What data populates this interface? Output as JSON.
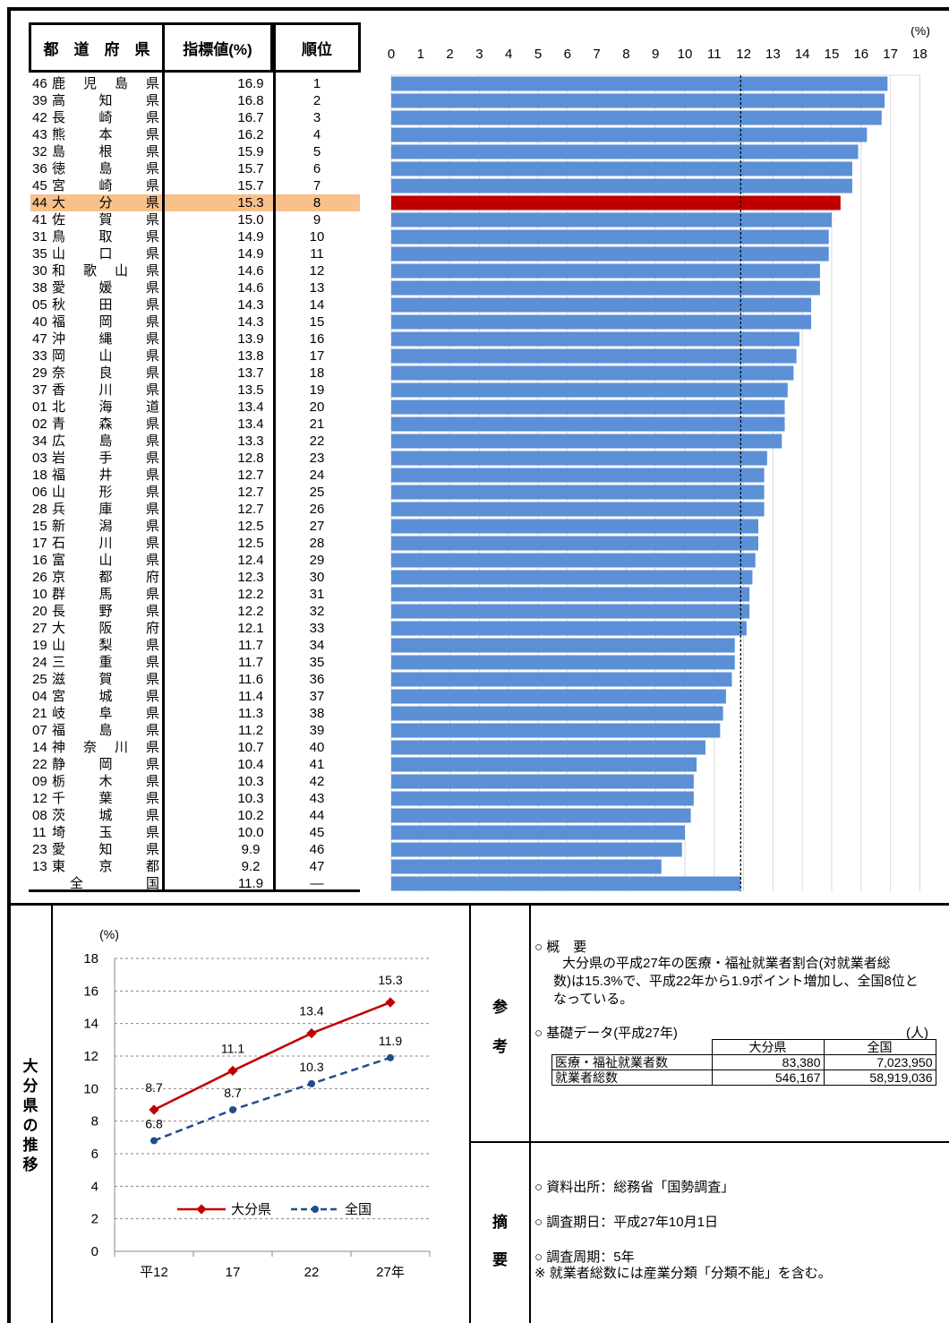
{
  "table_headers": {
    "prefecture": "都　道　府　県",
    "value": "指標値(%)",
    "rank": "順位"
  },
  "chart_data": [
    {
      "type": "bar",
      "orientation": "horizontal",
      "unit": "(%)",
      "xlim": [
        0,
        18
      ],
      "xticks": [
        "0",
        "1",
        "2",
        "3",
        "4",
        "5",
        "6",
        "7",
        "8",
        "9",
        "10",
        "11",
        "12",
        "13",
        "14",
        "15",
        "16",
        "17",
        "18"
      ],
      "reference_line": 11.9,
      "highlight": "大分県",
      "colors": {
        "bar": "#5b8fd6",
        "highlight": "#c00000",
        "highlight_row": "#f8c08a"
      },
      "rows": [
        {
          "code": "46",
          "name": "鹿児島県",
          "value": 16.9,
          "rank": "1"
        },
        {
          "code": "39",
          "name": "高知県",
          "value": 16.8,
          "rank": "2"
        },
        {
          "code": "42",
          "name": "長崎県",
          "value": 16.7,
          "rank": "3"
        },
        {
          "code": "43",
          "name": "熊本県",
          "value": 16.2,
          "rank": "4"
        },
        {
          "code": "32",
          "name": "島根県",
          "value": 15.9,
          "rank": "5"
        },
        {
          "code": "36",
          "name": "徳島県",
          "value": 15.7,
          "rank": "6"
        },
        {
          "code": "45",
          "name": "宮崎県",
          "value": 15.7,
          "rank": "7"
        },
        {
          "code": "44",
          "name": "大分県",
          "value": 15.3,
          "rank": "8"
        },
        {
          "code": "41",
          "name": "佐賀県",
          "value": 15.0,
          "rank": "9"
        },
        {
          "code": "31",
          "name": "鳥取県",
          "value": 14.9,
          "rank": "10"
        },
        {
          "code": "35",
          "name": "山口県",
          "value": 14.9,
          "rank": "11"
        },
        {
          "code": "30",
          "name": "和歌山県",
          "value": 14.6,
          "rank": "12"
        },
        {
          "code": "38",
          "name": "愛媛県",
          "value": 14.6,
          "rank": "13"
        },
        {
          "code": "05",
          "name": "秋田県",
          "value": 14.3,
          "rank": "14"
        },
        {
          "code": "40",
          "name": "福岡県",
          "value": 14.3,
          "rank": "15"
        },
        {
          "code": "47",
          "name": "沖縄県",
          "value": 13.9,
          "rank": "16"
        },
        {
          "code": "33",
          "name": "岡山県",
          "value": 13.8,
          "rank": "17"
        },
        {
          "code": "29",
          "name": "奈良県",
          "value": 13.7,
          "rank": "18"
        },
        {
          "code": "37",
          "name": "香川県",
          "value": 13.5,
          "rank": "19"
        },
        {
          "code": "01",
          "name": "北海道",
          "value": 13.4,
          "rank": "20"
        },
        {
          "code": "02",
          "name": "青森県",
          "value": 13.4,
          "rank": "21"
        },
        {
          "code": "34",
          "name": "広島県",
          "value": 13.3,
          "rank": "22"
        },
        {
          "code": "03",
          "name": "岩手県",
          "value": 12.8,
          "rank": "23"
        },
        {
          "code": "18",
          "name": "福井県",
          "value": 12.7,
          "rank": "24"
        },
        {
          "code": "06",
          "name": "山形県",
          "value": 12.7,
          "rank": "25"
        },
        {
          "code": "28",
          "name": "兵庫県",
          "value": 12.7,
          "rank": "26"
        },
        {
          "code": "15",
          "name": "新潟県",
          "value": 12.5,
          "rank": "27"
        },
        {
          "code": "17",
          "name": "石川県",
          "value": 12.5,
          "rank": "28"
        },
        {
          "code": "16",
          "name": "富山県",
          "value": 12.4,
          "rank": "29"
        },
        {
          "code": "26",
          "name": "京都府",
          "value": 12.3,
          "rank": "30"
        },
        {
          "code": "10",
          "name": "群馬県",
          "value": 12.2,
          "rank": "31"
        },
        {
          "code": "20",
          "name": "長野県",
          "value": 12.2,
          "rank": "32"
        },
        {
          "code": "27",
          "name": "大阪府",
          "value": 12.1,
          "rank": "33"
        },
        {
          "code": "19",
          "name": "山梨県",
          "value": 11.7,
          "rank": "34"
        },
        {
          "code": "24",
          "name": "三重県",
          "value": 11.7,
          "rank": "35"
        },
        {
          "code": "25",
          "name": "滋賀県",
          "value": 11.6,
          "rank": "36"
        },
        {
          "code": "04",
          "name": "宮城県",
          "value": 11.4,
          "rank": "37"
        },
        {
          "code": "21",
          "name": "岐阜県",
          "value": 11.3,
          "rank": "38"
        },
        {
          "code": "07",
          "name": "福島県",
          "value": 11.2,
          "rank": "39"
        },
        {
          "code": "14",
          "name": "神奈川県",
          "value": 10.7,
          "rank": "40"
        },
        {
          "code": "22",
          "name": "静岡県",
          "value": 10.4,
          "rank": "41"
        },
        {
          "code": "09",
          "name": "栃木県",
          "value": 10.3,
          "rank": "42"
        },
        {
          "code": "12",
          "name": "千葉県",
          "value": 10.3,
          "rank": "43"
        },
        {
          "code": "08",
          "name": "茨城県",
          "value": 10.2,
          "rank": "44"
        },
        {
          "code": "11",
          "name": "埼玉県",
          "value": 10.0,
          "rank": "45"
        },
        {
          "code": "23",
          "name": "愛知県",
          "value": 9.9,
          "rank": "46"
        },
        {
          "code": "13",
          "name": "東京都",
          "value": 9.2,
          "rank": "47"
        },
        {
          "code": "",
          "name": "全国",
          "value": 11.9,
          "rank": "―"
        }
      ]
    },
    {
      "type": "line",
      "unit": "(%)",
      "ylim": [
        0,
        18
      ],
      "yticks": [
        "0",
        "2",
        "4",
        "6",
        "8",
        "10",
        "12",
        "14",
        "16",
        "18"
      ],
      "categories": [
        "平12",
        "17",
        "22",
        "27年"
      ],
      "grid": true,
      "legend_position": "bottom-center",
      "series": [
        {
          "name": "大分県",
          "values": [
            8.7,
            11.1,
            13.4,
            15.3
          ],
          "labels": [
            "8.7",
            "11.1",
            "13.4",
            "15.3"
          ],
          "color": "#c00000",
          "style": "solid"
        },
        {
          "name": "全国",
          "values": [
            6.8,
            8.7,
            10.3,
            11.9
          ],
          "labels": [
            "6.8",
            "8.7",
            "10.3",
            "11.9"
          ],
          "color": "#1f4e8c",
          "style": "dashed"
        }
      ]
    }
  ],
  "side_label": "大分県の推移",
  "reference": {
    "label": [
      "参",
      "考"
    ],
    "overview_title": "○ 概　要",
    "overview_lines": [
      "　大分県の平成27年の医療・福祉就業者割合(対就業者総",
      "数)は15.3%で、平成22年から1.9ポイント増加し、全国8位と",
      "なっている。"
    ],
    "basic_title": "○ 基礎データ(平成27年)",
    "basic_unit": "(人)",
    "basic_table": {
      "columns": [
        "",
        "大分県",
        "全国"
      ],
      "rows": [
        [
          "医療・福祉就業者数",
          "83,380",
          "7,023,950"
        ],
        [
          "就業者総数",
          "546,167",
          "58,919,036"
        ]
      ]
    }
  },
  "summary": {
    "label": [
      "摘",
      "要"
    ],
    "source": "○ 資料出所：総務省「国勢調査」",
    "date": "○ 調査期日：平成27年10月1日",
    "cycle": "○ 調査周期：5年",
    "note": "※ 就業者総数には産業分類「分類不能」を含む。"
  }
}
